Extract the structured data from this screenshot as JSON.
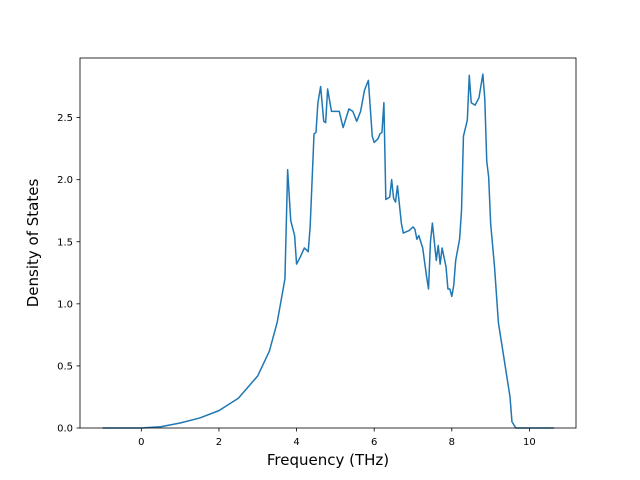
{
  "chart_data": {
    "type": "line",
    "xlabel": "Frequency (THz)",
    "ylabel": "Density of States",
    "color": "#1f77b4",
    "x": [
      -1.0,
      0,
      0.5,
      1.0,
      1.5,
      2.0,
      2.5,
      3.0,
      3.3,
      3.5,
      3.7,
      3.77,
      3.85,
      3.95,
      4.0,
      4.1,
      4.2,
      4.3,
      4.35,
      4.45,
      4.5,
      4.55,
      4.62,
      4.7,
      4.75,
      4.8,
      4.9,
      5.0,
      5.1,
      5.2,
      5.35,
      5.45,
      5.55,
      5.65,
      5.75,
      5.85,
      5.95,
      6.0,
      6.1,
      6.15,
      6.2,
      6.25,
      6.3,
      6.4,
      6.45,
      6.5,
      6.55,
      6.6,
      6.7,
      6.75,
      6.9,
      7.0,
      7.05,
      7.1,
      7.15,
      7.25,
      7.35,
      7.4,
      7.45,
      7.5,
      7.6,
      7.65,
      7.7,
      7.75,
      7.85,
      7.9,
      7.95,
      8.0,
      8.05,
      8.1,
      8.2,
      8.25,
      8.3,
      8.4,
      8.45,
      8.5,
      8.6,
      8.7,
      8.8,
      8.85,
      8.9,
      8.95,
      9.0,
      9.1,
      9.2,
      9.3,
      9.4,
      9.5,
      9.55,
      9.65,
      10.63
    ],
    "values": [
      0,
      0,
      0.01,
      0.04,
      0.08,
      0.14,
      0.24,
      0.42,
      0.62,
      0.85,
      1.2,
      2.08,
      1.67,
      1.55,
      1.32,
      1.38,
      1.45,
      1.42,
      1.62,
      2.37,
      2.38,
      2.62,
      2.75,
      2.47,
      2.46,
      2.73,
      2.55,
      2.55,
      2.55,
      2.42,
      2.57,
      2.55,
      2.47,
      2.55,
      2.72,
      2.8,
      2.35,
      2.3,
      2.33,
      2.37,
      2.38,
      2.62,
      1.84,
      1.86,
      2.0,
      1.85,
      1.82,
      1.95,
      1.65,
      1.57,
      1.59,
      1.62,
      1.6,
      1.52,
      1.55,
      1.45,
      1.22,
      1.12,
      1.5,
      1.65,
      1.35,
      1.47,
      1.32,
      1.45,
      1.3,
      1.12,
      1.12,
      1.06,
      1.15,
      1.35,
      1.52,
      1.75,
      2.35,
      2.48,
      2.84,
      2.62,
      2.6,
      2.66,
      2.85,
      2.65,
      2.15,
      2.02,
      1.65,
      1.3,
      0.85,
      0.65,
      0.45,
      0.25,
      0.05,
      0,
      0
    ],
    "xlim": [
      -1.58,
      11.2
    ],
    "ylim": [
      0,
      2.98
    ],
    "xticks": [
      0,
      2,
      4,
      6,
      8,
      10
    ],
    "yticks": [
      {
        "value": 0,
        "label": "0.0"
      },
      {
        "value": 0.5,
        "label": "0.5"
      },
      {
        "value": 1,
        "label": "1.0"
      },
      {
        "value": 1.5,
        "label": "1.5"
      },
      {
        "value": 2,
        "label": "2.0"
      },
      {
        "value": 2.5,
        "label": "2.5"
      }
    ]
  }
}
